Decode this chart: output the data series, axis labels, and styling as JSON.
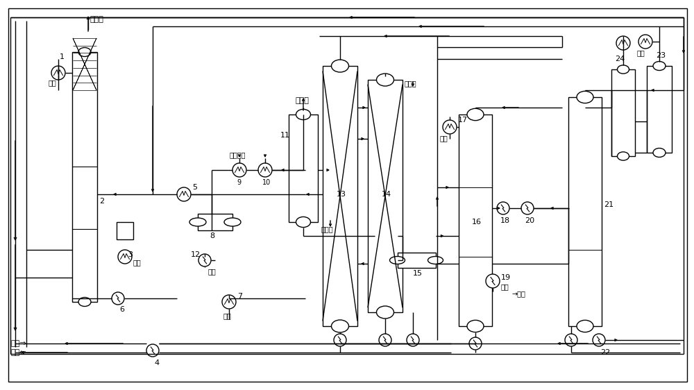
{
  "bg_color": "#ffffff",
  "line_color": "#000000",
  "lw": 1.0,
  "labels": {
    "acid_gas": "酸性气",
    "crude_ammonia": "粗氨气",
    "ammonia_liquid": "氨凝液",
    "extractant": "萃取剂",
    "cold_media": "冷媒",
    "cold_media2": "冷媒冷媒",
    "hot_media": "热媒",
    "crude_phenol": "粗酚",
    "inlet_water": "进水",
    "outlet_water": "出水"
  }
}
